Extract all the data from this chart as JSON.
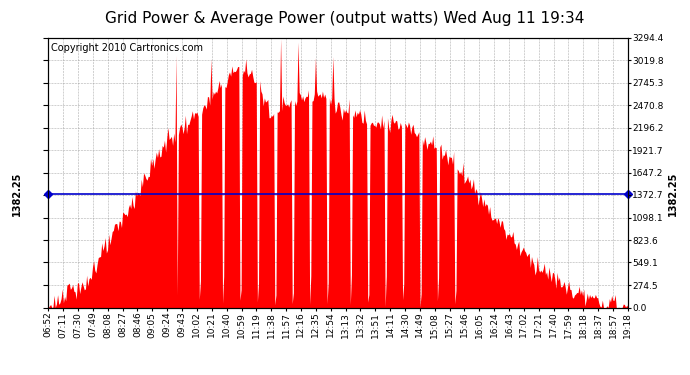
{
  "title": "Grid Power & Average Power (output watts) Wed Aug 11 19:34",
  "copyright": "Copyright 2010 Cartronics.com",
  "avg_line_value": 1382.25,
  "avg_line_label": "1382.25",
  "ymin": 0.0,
  "ymax": 3294.4,
  "yticks": [
    0.0,
    274.5,
    549.1,
    823.6,
    1098.1,
    1372.7,
    1647.2,
    1921.7,
    2196.2,
    2470.8,
    2745.3,
    3019.8,
    3294.4
  ],
  "bar_color": "#FF0000",
  "avg_line_color": "#0000CC",
  "background_color": "#FFFFFF",
  "grid_color": "#999999",
  "xtick_labels": [
    "06:52",
    "07:11",
    "07:30",
    "07:49",
    "08:08",
    "08:27",
    "08:46",
    "09:05",
    "09:24",
    "09:43",
    "10:02",
    "10:21",
    "10:40",
    "10:59",
    "11:19",
    "11:38",
    "11:57",
    "12:16",
    "12:35",
    "12:54",
    "13:13",
    "13:32",
    "13:51",
    "14:11",
    "14:30",
    "14:49",
    "15:08",
    "15:27",
    "15:46",
    "16:05",
    "16:24",
    "16:43",
    "17:02",
    "17:21",
    "17:40",
    "17:59",
    "18:18",
    "18:37",
    "18:57",
    "19:18"
  ],
  "title_fontsize": 11,
  "copyright_fontsize": 7,
  "tick_fontsize": 6.5,
  "avg_label_fontsize": 7,
  "figsize": [
    6.9,
    3.75
  ],
  "dpi": 100
}
